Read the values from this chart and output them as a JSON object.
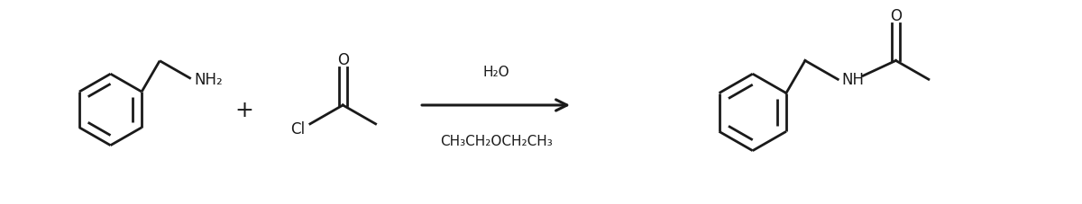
{
  "background_color": "#ffffff",
  "line_color": "#1a1a1a",
  "line_width": 2.0,
  "fig_width": 12.0,
  "fig_height": 2.28,
  "dpi": 100,
  "arrow_above": "H₂O",
  "arrow_below": "CH₃CH₂OCH₂CH₃",
  "plus_sign": "+",
  "nh_label": "NH",
  "nh2_label": "NH₂",
  "cl_label": "Cl",
  "o_label": "O",
  "font_size_labels": 12,
  "font_size_arrow_text": 11,
  "font_size_plus": 18
}
